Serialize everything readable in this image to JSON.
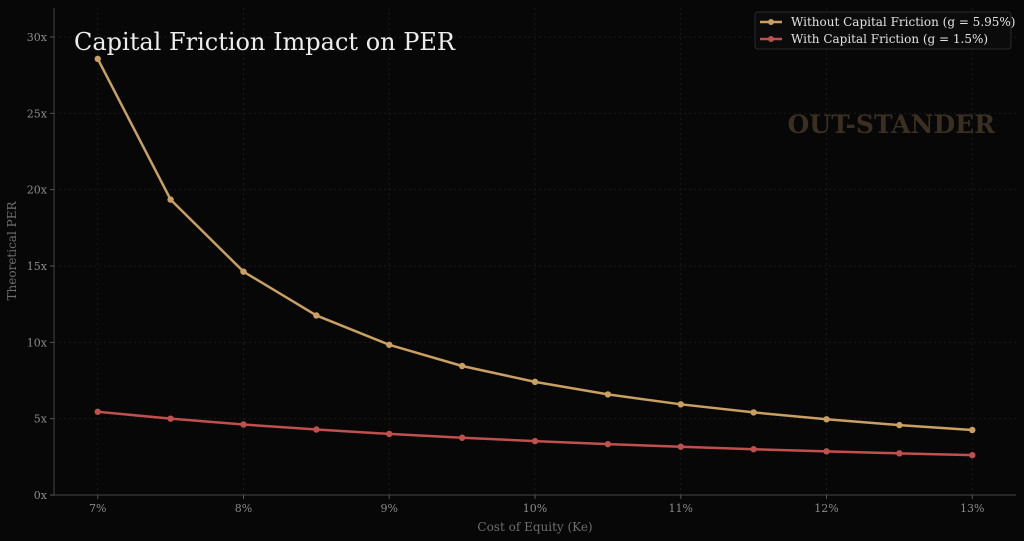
{
  "chart_data": {
    "type": "line",
    "title": "Capital Friction Impact on PER",
    "xlabel": "Cost of Equity (Ke)",
    "ylabel": "Theoretical PER",
    "x": [
      7,
      7.5,
      8,
      8.5,
      9,
      9.5,
      10,
      10.5,
      11,
      11.5,
      12,
      12.5,
      13
    ],
    "xlim": [
      6.7,
      13.3
    ],
    "ylim": [
      0,
      31.9
    ],
    "xticks": [
      7,
      8,
      9,
      10,
      11,
      12,
      13
    ],
    "xtick_labels": [
      "7%",
      "8%",
      "9%",
      "10%",
      "11%",
      "12%",
      "13%"
    ],
    "yticks": [
      0,
      5,
      10,
      15,
      20,
      25,
      30
    ],
    "ytick_labels": [
      "0x",
      "5x",
      "10x",
      "15x",
      "20x",
      "25x",
      "30x"
    ],
    "grid": true,
    "legend_position": "top-right",
    "series": [
      {
        "name": "Without Capital Friction  (g = 5.95%)",
        "color": "#c9a062",
        "values": [
          28.57,
          19.35,
          14.63,
          11.76,
          9.84,
          8.45,
          7.41,
          6.59,
          5.94,
          5.41,
          4.96,
          4.58,
          4.26
        ]
      },
      {
        "name": "With Capital Friction  (g = 1.5%)",
        "color": "#c0504d",
        "values": [
          5.45,
          5.0,
          4.62,
          4.29,
          4.0,
          3.75,
          3.53,
          3.33,
          3.16,
          3.0,
          2.86,
          2.73,
          2.61
        ]
      }
    ],
    "watermark": "OUT-STANDER"
  }
}
